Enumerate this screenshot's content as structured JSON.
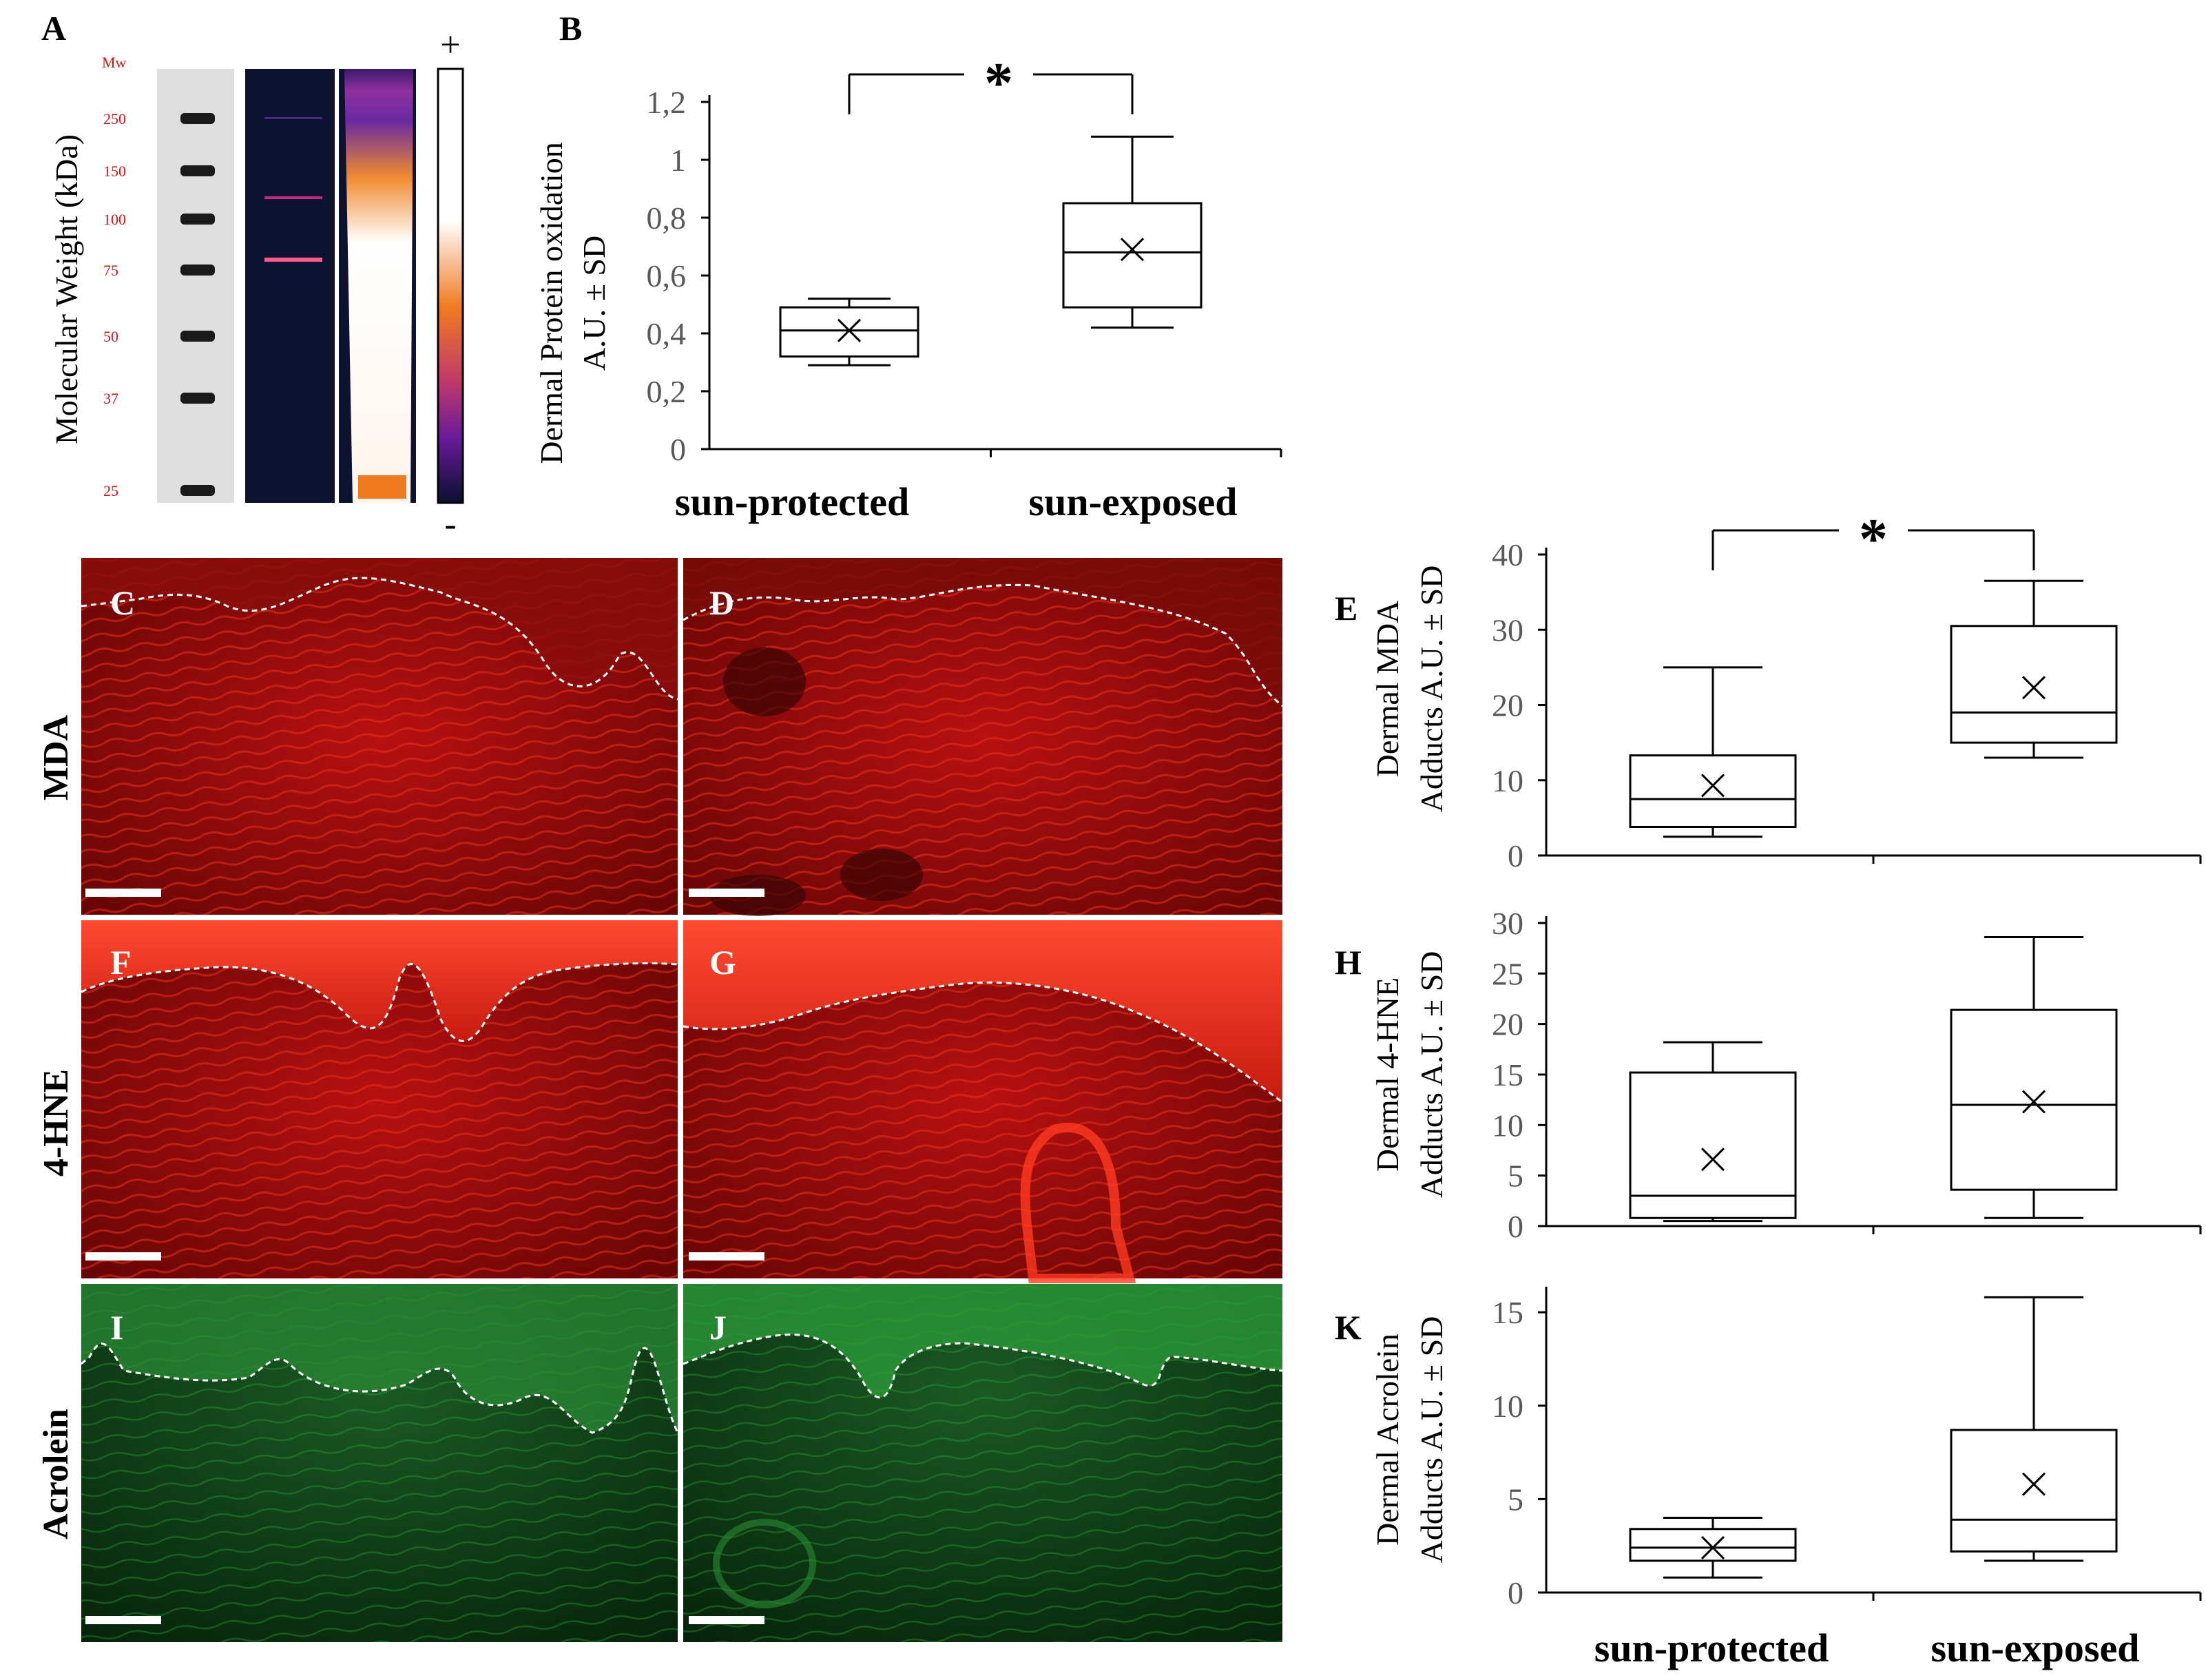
{
  "panel_letters": {
    "A": "A",
    "B": "B",
    "C": "C",
    "D": "D",
    "E": "E",
    "F": "F",
    "G": "G",
    "H": "H",
    "I": "I",
    "J": "J",
    "K": "K"
  },
  "gel": {
    "ylabel": "Molecular Weight (kDa)",
    "mw_header": "Mw",
    "mw_markers": [
      "250",
      "150",
      "100",
      "75",
      "50",
      "37",
      "25"
    ],
    "scale_plus": "+",
    "scale_minus": "-"
  },
  "micrographs": {
    "row_labels": [
      "MDA",
      "4-HNE",
      "Acrolein"
    ]
  },
  "significance_marker": "*",
  "chart_data": [
    {
      "panel": "B",
      "type": "box",
      "ylabel_lines": [
        "Dermal Protein oxidation",
        "A.U. ± SD"
      ],
      "categories": [
        "sun-protected",
        "sun-exposed"
      ],
      "ylim": [
        0,
        1.2
      ],
      "yticks": [
        "0",
        "0,2",
        "0,4",
        "0,6",
        "0,8",
        "1",
        "1,2"
      ],
      "ytick_values": [
        0,
        0.2,
        0.4,
        0.6,
        0.8,
        1.0,
        1.2
      ],
      "boxes": [
        {
          "min": 0.29,
          "q1": 0.32,
          "median": 0.41,
          "q3": 0.49,
          "max": 0.52,
          "mean": 0.41
        },
        {
          "min": 0.42,
          "q1": 0.49,
          "median": 0.68,
          "q3": 0.85,
          "max": 1.08,
          "mean": 0.69
        }
      ],
      "significance": "*"
    },
    {
      "panel": "E",
      "type": "box",
      "ylabel_lines": [
        "Dermal MDA",
        "Adducts A.U. ± SD"
      ],
      "categories": [
        "sun-protected",
        "sun-exposed"
      ],
      "ylim": [
        0,
        40
      ],
      "yticks": [
        "0",
        "10",
        "20",
        "30",
        "40"
      ],
      "ytick_values": [
        0,
        10,
        20,
        30,
        40
      ],
      "boxes": [
        {
          "min": 2.5,
          "q1": 3.8,
          "median": 7.5,
          "q3": 13.3,
          "max": 25,
          "mean": 9.3
        },
        {
          "min": 13,
          "q1": 15,
          "median": 19,
          "q3": 30.5,
          "max": 36.5,
          "mean": 22.3
        }
      ],
      "significance": "*"
    },
    {
      "panel": "H",
      "type": "box",
      "ylabel_lines": [
        "Dermal 4-HNE",
        "Adducts A.U. ± SD"
      ],
      "categories": [
        "sun-protected",
        "sun-exposed"
      ],
      "ylim": [
        0,
        30
      ],
      "yticks": [
        "0",
        "5",
        "10",
        "15",
        "20",
        "25",
        "30"
      ],
      "ytick_values": [
        0,
        5,
        10,
        15,
        20,
        25,
        30
      ],
      "boxes": [
        {
          "min": 0.5,
          "q1": 0.8,
          "median": 3,
          "q3": 15.2,
          "max": 18.2,
          "mean": 6.6
        },
        {
          "min": 0.8,
          "q1": 3.6,
          "median": 12,
          "q3": 21.4,
          "max": 28.6,
          "mean": 12.3
        }
      ]
    },
    {
      "panel": "K",
      "type": "box",
      "ylabel_lines": [
        "Dermal Acrolein",
        "Adducts A.U. ± SD"
      ],
      "categories": [
        "sun-protected",
        "sun-exposed"
      ],
      "ylim": [
        0,
        16
      ],
      "yticks": [
        "0",
        "5",
        "10",
        "15"
      ],
      "ytick_values": [
        0,
        5,
        10,
        15
      ],
      "boxes": [
        {
          "min": 0.8,
          "q1": 1.7,
          "median": 2.4,
          "q3": 3.4,
          "max": 4.0,
          "mean": 2.4
        },
        {
          "min": 1.7,
          "q1": 2.2,
          "median": 3.9,
          "q3": 8.7,
          "max": 15.8,
          "mean": 5.8
        }
      ]
    }
  ]
}
